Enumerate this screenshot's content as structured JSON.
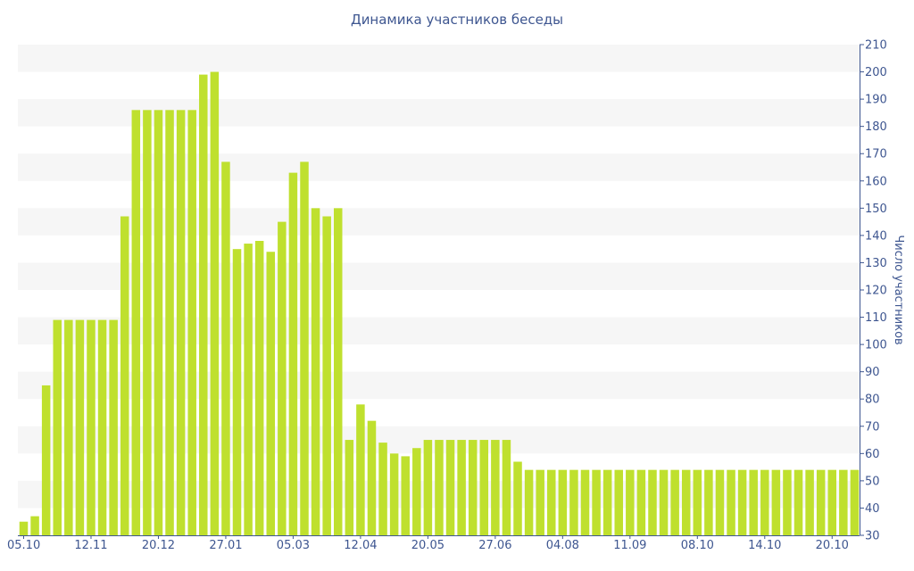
{
  "chart_data": {
    "type": "bar",
    "title": "Динамика участников беседы",
    "ylabel": "Число участников",
    "xlabel": "",
    "ylim": [
      30,
      210
    ],
    "y_ticks": [
      30,
      40,
      50,
      60,
      70,
      80,
      90,
      100,
      110,
      120,
      130,
      140,
      150,
      160,
      170,
      180,
      190,
      200,
      210
    ],
    "y_axis_side": "right",
    "grid": "alternating horizontal bands",
    "x_tick_labels": [
      {
        "label": "05.10",
        "index": 0
      },
      {
        "label": "12.11",
        "index": 6
      },
      {
        "label": "20.12",
        "index": 12
      },
      {
        "label": "27.01",
        "index": 18
      },
      {
        "label": "05.03",
        "index": 24
      },
      {
        "label": "12.04",
        "index": 30
      },
      {
        "label": "20.05",
        "index": 36
      },
      {
        "label": "27.06",
        "index": 42
      },
      {
        "label": "04.08",
        "index": 48
      },
      {
        "label": "11.09",
        "index": 54
      },
      {
        "label": "08.10",
        "index": 60
      },
      {
        "label": "14.10",
        "index": 66
      },
      {
        "label": "20.10",
        "index": 72
      }
    ],
    "values": [
      35,
      37,
      85,
      109,
      109,
      109,
      109,
      109,
      109,
      147,
      186,
      186,
      186,
      186,
      186,
      186,
      199,
      200,
      167,
      135,
      137,
      138,
      134,
      145,
      163,
      167,
      150,
      147,
      150,
      65,
      78,
      72,
      64,
      60,
      59,
      62,
      65,
      65,
      65,
      65,
      65,
      65,
      65,
      65,
      57,
      54,
      54,
      54,
      54,
      54,
      54,
      54,
      54,
      54,
      54,
      54,
      54,
      54,
      54,
      54,
      54,
      54,
      54,
      54,
      54,
      54,
      54,
      54,
      54,
      54,
      54,
      54,
      54,
      54,
      54
    ],
    "colors": {
      "bar": "#bfe02e",
      "axis": "#3e5690",
      "band": "#f6f6f6"
    }
  }
}
